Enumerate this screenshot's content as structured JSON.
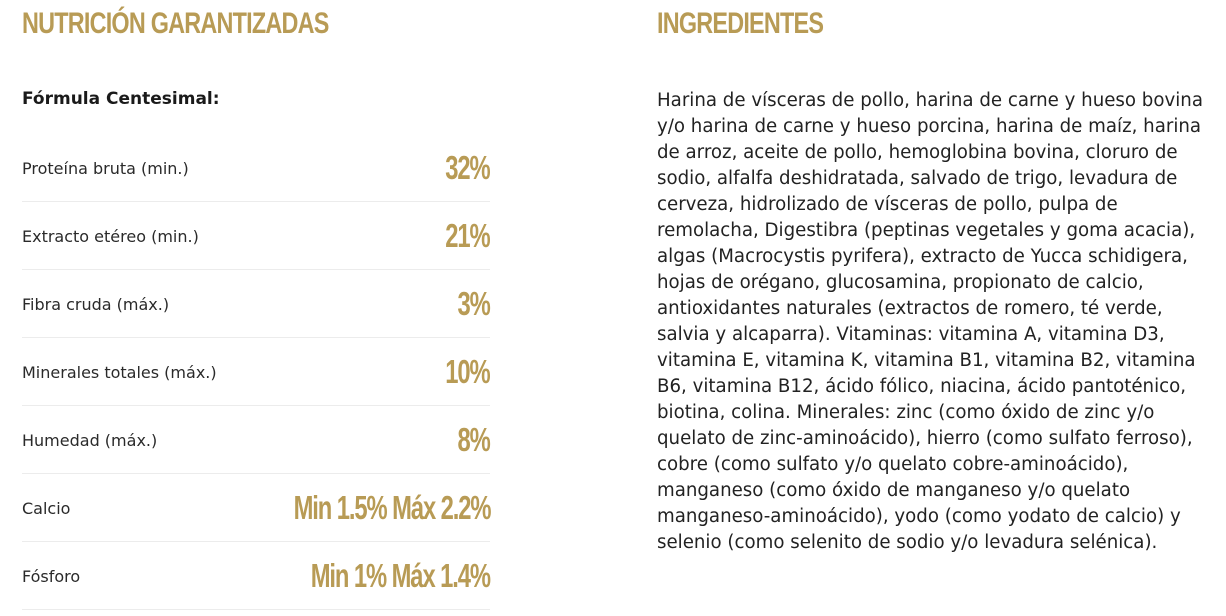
{
  "nutrition": {
    "heading": "NUTRICIÓN GARANTIZADAS",
    "formula_label": "Fórmula Centesimal:",
    "rows": [
      {
        "name": "Proteína bruta (min.)",
        "value": "32%"
      },
      {
        "name": "Extracto etéreo (min.)",
        "value": "21%"
      },
      {
        "name": "Fibra cruda (máx.)",
        "value": "3%"
      },
      {
        "name": "Minerales totales (máx.)",
        "value": "10%"
      },
      {
        "name": "Humedad (máx.)",
        "value": "8%"
      },
      {
        "name": "Calcio",
        "value": "Min 1.5% Máx 2.2%"
      },
      {
        "name": "Fósforo",
        "value": "Min 1% Máx 1.4%"
      }
    ]
  },
  "ingredients": {
    "heading": "INGREDIENTES",
    "text": "Harina de vísceras de pollo, harina de carne y hueso bovina y/o harina de carne y hueso porcina, harina de maíz, harina de arroz, aceite de pollo, hemoglobina bovina, cloruro de sodio, alfalfa deshidratada, salvado de trigo, levadura de cerveza, hidrolizado de vísceras de pollo, pulpa de remolacha, Digestibra (peptinas vegetales y goma acacia), algas (Macrocystis pyrifera), extracto de Yucca schidigera, hojas de orégano, glucosamina, propionato de calcio, antioxidantes naturales (extractos de romero, té verde, salvia y alcaparra). Vitaminas: vitamina A, vitamina D3, vitamina E, vitamina K, vitamina B1, vitamina B2, vitamina B6, vitamina B12, ácido fólico, niacina, ácido pantoténico, biotina, colina. Minerales: zinc (como óxido de zinc y/o quelato de zinc-aminoácido), hierro (como sulfato ferroso), cobre (como sulfato y/o quelato cobre-aminoácido), manganeso (como óxido de manganeso y/o quelato manganeso-aminoácido), yodo (como yodato de calcio) y selenio (como selenito de sodio y/o levadura selénica)."
  },
  "colors": {
    "accent_gold": "#b89b55",
    "text": "#222222"
  }
}
